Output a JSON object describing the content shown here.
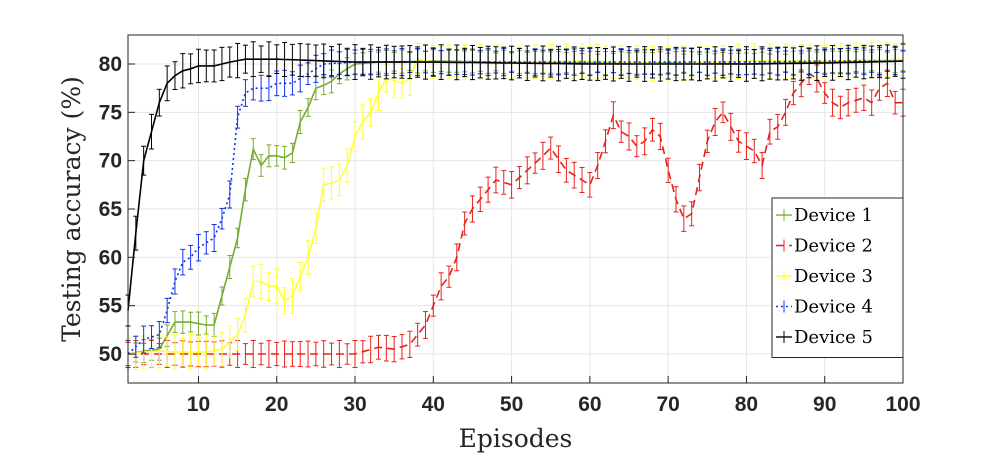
{
  "chart_data": {
    "type": "line",
    "title": "",
    "xlabel": "Episodes",
    "ylabel": "Testing accuracy (%)",
    "xlim": [
      1,
      100
    ],
    "ylim": [
      47,
      83
    ],
    "xticks": [
      10,
      20,
      30,
      40,
      50,
      60,
      70,
      80,
      90,
      100
    ],
    "yticks": [
      50,
      55,
      60,
      65,
      70,
      75,
      80
    ],
    "grid": true,
    "legend_position": "right",
    "error_bars": true,
    "series": [
      {
        "name": "Device 1",
        "color": "#77AC30",
        "line_style": "solid",
        "error": 1.2,
        "points": [
          [
            1,
            50
          ],
          [
            3,
            50.3
          ],
          [
            5,
            50.5
          ],
          [
            7,
            53.3
          ],
          [
            9,
            53.3
          ],
          [
            11,
            53
          ],
          [
            12,
            53
          ],
          [
            13,
            56
          ],
          [
            14,
            59
          ],
          [
            15,
            62
          ],
          [
            16,
            67
          ],
          [
            17,
            71.2
          ],
          [
            18,
            69.5
          ],
          [
            19,
            70.5
          ],
          [
            20,
            70.5
          ],
          [
            21,
            70.3
          ],
          [
            22,
            70.8
          ],
          [
            23,
            74
          ],
          [
            24,
            75.5
          ],
          [
            25,
            77.5
          ],
          [
            26,
            77.8
          ],
          [
            27,
            78.2
          ],
          [
            28,
            79
          ],
          [
            29,
            79.5
          ],
          [
            30,
            80
          ],
          [
            33,
            80.2
          ],
          [
            40,
            80.3
          ],
          [
            50,
            80.2
          ],
          [
            60,
            80.1
          ],
          [
            70,
            80.1
          ],
          [
            80,
            80
          ],
          [
            90,
            80.2
          ],
          [
            100,
            80.3
          ]
        ]
      },
      {
        "name": "Device 2",
        "color": "#E8221B",
        "line_style": "dashed",
        "error": 1.4,
        "points": [
          [
            1,
            50
          ],
          [
            5,
            50
          ],
          [
            10,
            50
          ],
          [
            15,
            50
          ],
          [
            20,
            50
          ],
          [
            25,
            50
          ],
          [
            30,
            50
          ],
          [
            33,
            50.7
          ],
          [
            35,
            50.5
          ],
          [
            37,
            51
          ],
          [
            38,
            52
          ],
          [
            39,
            53
          ],
          [
            40,
            55
          ],
          [
            41,
            57
          ],
          [
            42,
            58
          ],
          [
            43,
            60
          ],
          [
            44,
            63.5
          ],
          [
            45,
            65
          ],
          [
            46,
            66
          ],
          [
            47,
            67
          ],
          [
            48,
            68
          ],
          [
            50,
            67.5
          ],
          [
            52,
            69
          ],
          [
            54,
            70.5
          ],
          [
            55,
            71.3
          ],
          [
            57,
            69
          ],
          [
            59,
            68
          ],
          [
            60,
            67.5
          ],
          [
            61,
            69.5
          ],
          [
            62,
            72
          ],
          [
            63,
            74.7
          ],
          [
            64,
            73
          ],
          [
            65,
            72.5
          ],
          [
            66,
            71.5
          ],
          [
            67,
            72
          ],
          [
            68,
            73.2
          ],
          [
            69,
            72.5
          ],
          [
            70,
            69
          ],
          [
            71,
            66
          ],
          [
            72,
            64
          ],
          [
            73,
            64.5
          ],
          [
            75,
            72
          ],
          [
            76,
            74
          ],
          [
            77,
            75
          ],
          [
            78,
            73.5
          ],
          [
            79,
            72
          ],
          [
            80,
            71.5
          ],
          [
            81,
            71
          ],
          [
            82,
            69.5
          ],
          [
            83,
            73
          ],
          [
            84,
            73.5
          ],
          [
            85,
            75
          ],
          [
            86,
            77
          ],
          [
            87,
            78
          ],
          [
            88,
            79
          ],
          [
            89,
            78.5
          ],
          [
            90,
            77
          ],
          [
            91,
            76
          ],
          [
            92,
            75.5
          ],
          [
            93,
            76
          ],
          [
            95,
            76.5
          ],
          [
            96,
            76
          ],
          [
            97,
            77.5
          ],
          [
            98,
            78
          ],
          [
            99,
            76
          ],
          [
            100,
            76
          ]
        ]
      },
      {
        "name": "Device 3",
        "color": "#FFFF33",
        "line_style": "solid",
        "error": 1.8,
        "points": [
          [
            1,
            50
          ],
          [
            3,
            50.2
          ],
          [
            5,
            50.3
          ],
          [
            7,
            50.2
          ],
          [
            9,
            50.2
          ],
          [
            11,
            50.2
          ],
          [
            13,
            50.5
          ],
          [
            15,
            52
          ],
          [
            16,
            54
          ],
          [
            17,
            57.5
          ],
          [
            18,
            57.5
          ],
          [
            19,
            57
          ],
          [
            20,
            57
          ],
          [
            21,
            55.5
          ],
          [
            22,
            56
          ],
          [
            23,
            58
          ],
          [
            24,
            60
          ],
          [
            25,
            63
          ],
          [
            26,
            67.5
          ],
          [
            27,
            67.7
          ],
          [
            28,
            68
          ],
          [
            29,
            69.5
          ],
          [
            30,
            72.5
          ],
          [
            31,
            74
          ],
          [
            32,
            75
          ],
          [
            33,
            77
          ],
          [
            34,
            78.5
          ],
          [
            35,
            78.3
          ],
          [
            36,
            78
          ],
          [
            37,
            78.5
          ],
          [
            38,
            80.5
          ],
          [
            40,
            80.2
          ],
          [
            50,
            80.2
          ],
          [
            60,
            80.3
          ],
          [
            70,
            80
          ],
          [
            80,
            80.3
          ],
          [
            90,
            80.3
          ],
          [
            100,
            80.5
          ]
        ]
      },
      {
        "name": "Device 4",
        "color": "#1133EE",
        "line_style": "dotted",
        "error": 1.4,
        "points": [
          [
            1,
            50
          ],
          [
            3,
            51.5
          ],
          [
            5,
            52
          ],
          [
            6,
            54.5
          ],
          [
            7,
            57.5
          ],
          [
            8,
            59.5
          ],
          [
            9,
            60
          ],
          [
            10,
            61
          ],
          [
            11,
            61.5
          ],
          [
            12,
            62
          ],
          [
            13,
            64
          ],
          [
            14,
            66.5
          ],
          [
            15,
            74.5
          ],
          [
            16,
            77
          ],
          [
            17,
            77.5
          ],
          [
            18,
            77.5
          ],
          [
            19,
            77.5
          ],
          [
            20,
            78
          ],
          [
            21,
            78
          ],
          [
            22,
            78
          ],
          [
            23,
            78.5
          ],
          [
            24,
            79
          ],
          [
            25,
            79.5
          ],
          [
            26,
            80
          ],
          [
            30,
            80.2
          ],
          [
            40,
            80.2
          ],
          [
            50,
            80.2
          ],
          [
            60,
            80.2
          ],
          [
            70,
            80.2
          ],
          [
            80,
            80.2
          ],
          [
            90,
            80.3
          ],
          [
            100,
            80.3
          ]
        ]
      },
      {
        "name": "Device 5",
        "color": "#000000",
        "line_style": "solid",
        "error": 1.8,
        "points": [
          [
            1,
            54.5
          ],
          [
            2,
            62.5
          ],
          [
            3,
            70
          ],
          [
            4,
            73
          ],
          [
            5,
            76
          ],
          [
            6,
            78
          ],
          [
            7,
            78.8
          ],
          [
            8,
            79.3
          ],
          [
            9,
            79.5
          ],
          [
            10,
            79.8
          ],
          [
            12,
            79.8
          ],
          [
            14,
            80.2
          ],
          [
            16,
            80.5
          ],
          [
            20,
            80.5
          ],
          [
            30,
            80.2
          ],
          [
            40,
            80.2
          ],
          [
            50,
            80.1
          ],
          [
            60,
            80
          ],
          [
            70,
            80
          ],
          [
            80,
            80
          ],
          [
            90,
            80.1
          ],
          [
            100,
            80.3
          ]
        ]
      }
    ]
  }
}
